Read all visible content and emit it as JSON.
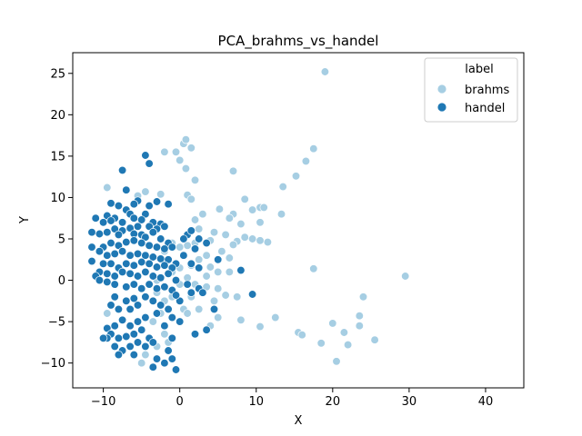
{
  "chart_data": {
    "type": "scatter",
    "title": "PCA_brahms_vs_handel",
    "xlabel": "X",
    "ylabel": "Y",
    "xlim": [
      -14,
      45
    ],
    "ylim": [
      -13,
      27.5
    ],
    "xticks": [
      -10,
      0,
      10,
      20,
      30,
      40
    ],
    "yticks": [
      -10,
      -5,
      0,
      5,
      10,
      15,
      20,
      25
    ],
    "grid": false,
    "legend": {
      "title": "label",
      "position": "top-right"
    },
    "series": [
      {
        "name": "brahms",
        "color": "#a6cee3",
        "points": [
          [
            19.0,
            25.2
          ],
          [
            0.5,
            16.5
          ],
          [
            0.8,
            17.0
          ],
          [
            1.5,
            16.0
          ],
          [
            -2.0,
            15.5
          ],
          [
            0.0,
            14.5
          ],
          [
            17.5,
            15.9
          ],
          [
            16.5,
            14.4
          ],
          [
            15.2,
            12.6
          ],
          [
            0.8,
            13.5
          ],
          [
            7.0,
            13.2
          ],
          [
            -0.5,
            15.5
          ],
          [
            2.0,
            12.1
          ],
          [
            13.5,
            11.3
          ],
          [
            -9.5,
            11.2
          ],
          [
            -4.5,
            10.7
          ],
          [
            -5.5,
            10.2
          ],
          [
            -2.5,
            10.4
          ],
          [
            1.0,
            10.3
          ],
          [
            1.5,
            9.8
          ],
          [
            8.5,
            9.8
          ],
          [
            10.5,
            8.8
          ],
          [
            11.0,
            8.8
          ],
          [
            9.5,
            8.5
          ],
          [
            13.3,
            8.0
          ],
          [
            5.2,
            8.6
          ],
          [
            7.0,
            8.0
          ],
          [
            3.0,
            8.0
          ],
          [
            6.5,
            7.5
          ],
          [
            2.0,
            7.3
          ],
          [
            10.5,
            7.0
          ],
          [
            8.0,
            6.8
          ],
          [
            4.5,
            5.8
          ],
          [
            2.5,
            6.2
          ],
          [
            6.0,
            5.5
          ],
          [
            8.5,
            5.2
          ],
          [
            9.5,
            5.0
          ],
          [
            11.5,
            4.6
          ],
          [
            10.5,
            4.8
          ],
          [
            7.5,
            4.7
          ],
          [
            7.0,
            4.3
          ],
          [
            4.0,
            4.8
          ],
          [
            2.0,
            4.5
          ],
          [
            1.0,
            4.2
          ],
          [
            -1.0,
            4.5
          ],
          [
            0.0,
            4.0
          ],
          [
            -2.0,
            3.5
          ],
          [
            3.5,
            3.0
          ],
          [
            5.5,
            3.5
          ],
          [
            6.5,
            2.7
          ],
          [
            2.5,
            2.5
          ],
          [
            1.5,
            1.8
          ],
          [
            0.0,
            1.5
          ],
          [
            -1.0,
            1.0
          ],
          [
            4.0,
            1.6
          ],
          [
            5.0,
            1.0
          ],
          [
            6.5,
            1.0
          ],
          [
            3.5,
            0.5
          ],
          [
            17.5,
            1.4
          ],
          [
            29.5,
            0.5
          ],
          [
            -3.0,
            0.0
          ],
          [
            0.0,
            -0.5
          ],
          [
            1.0,
            0.3
          ],
          [
            2.0,
            -0.5
          ],
          [
            3.5,
            -0.8
          ],
          [
            5.0,
            -1.0
          ],
          [
            6.0,
            -1.8
          ],
          [
            7.5,
            -2.0
          ],
          [
            4.5,
            -2.5
          ],
          [
            1.5,
            -2.0
          ],
          [
            -1.0,
            -2.0
          ],
          [
            -3.0,
            -1.5
          ],
          [
            -2.0,
            -2.5
          ],
          [
            0.5,
            -3.5
          ],
          [
            2.5,
            -3.5
          ],
          [
            5.0,
            -4.5
          ],
          [
            8.0,
            -4.8
          ],
          [
            12.5,
            -4.5
          ],
          [
            10.5,
            -5.6
          ],
          [
            4.0,
            -5.5
          ],
          [
            1.0,
            -4.0
          ],
          [
            -2.5,
            -4.0
          ],
          [
            -3.5,
            -5.0
          ],
          [
            -2.0,
            -6.5
          ],
          [
            -1.5,
            -7.5
          ],
          [
            -3.0,
            -8.0
          ],
          [
            -4.5,
            -9.0
          ],
          [
            -5.0,
            -10.0
          ],
          [
            -9.5,
            -4.0
          ],
          [
            15.5,
            -6.3
          ],
          [
            16.0,
            -6.6
          ],
          [
            20.0,
            -5.2
          ],
          [
            21.5,
            -6.3
          ],
          [
            18.5,
            -7.6
          ],
          [
            22.0,
            -7.8
          ],
          [
            20.5,
            -9.8
          ],
          [
            23.5,
            -5.5
          ],
          [
            23.5,
            -4.3
          ],
          [
            24.0,
            -2.0
          ],
          [
            25.5,
            -7.2
          ]
        ]
      },
      {
        "name": "handel",
        "color": "#1f78b4",
        "points": [
          [
            -4.5,
            15.1
          ],
          [
            -4.0,
            14.1
          ],
          [
            -7.5,
            13.3
          ],
          [
            -7.0,
            10.9
          ],
          [
            -5.5,
            9.6
          ],
          [
            -4.0,
            9.0
          ],
          [
            -6.0,
            9.2
          ],
          [
            -8.0,
            9.0
          ],
          [
            -9.0,
            9.3
          ],
          [
            -3.0,
            9.5
          ],
          [
            -1.5,
            9.2
          ],
          [
            -7.0,
            8.5
          ],
          [
            -6.5,
            8.0
          ],
          [
            -4.5,
            8.0
          ],
          [
            -9.5,
            7.8
          ],
          [
            -8.5,
            7.5
          ],
          [
            -10.0,
            7.0
          ],
          [
            -11.0,
            7.5
          ],
          [
            -9.0,
            7.2
          ],
          [
            -7.5,
            7.0
          ],
          [
            -6.0,
            7.5
          ],
          [
            -5.0,
            7.3
          ],
          [
            -3.5,
            7.0
          ],
          [
            -2.5,
            6.8
          ],
          [
            -2.0,
            6.5
          ],
          [
            -3.0,
            6.2
          ],
          [
            -4.0,
            6.5
          ],
          [
            -5.5,
            6.5
          ],
          [
            -6.5,
            6.3
          ],
          [
            -7.5,
            6.0
          ],
          [
            -8.5,
            6.2
          ],
          [
            -9.5,
            5.8
          ],
          [
            -10.5,
            5.6
          ],
          [
            -11.5,
            5.8
          ],
          [
            -8.0,
            5.5
          ],
          [
            -6.0,
            5.6
          ],
          [
            -5.0,
            5.5
          ],
          [
            -4.5,
            5.2
          ],
          [
            -3.5,
            5.8
          ],
          [
            -2.5,
            5.0
          ],
          [
            -1.5,
            4.5
          ],
          [
            1.0,
            5.5
          ],
          [
            1.5,
            6.0
          ],
          [
            2.5,
            5.0
          ],
          [
            -1.0,
            4.0
          ],
          [
            -2.0,
            3.8
          ],
          [
            -3.0,
            4.0
          ],
          [
            -4.0,
            4.2
          ],
          [
            -5.0,
            4.5
          ],
          [
            -6.0,
            4.8
          ],
          [
            -7.0,
            4.6
          ],
          [
            -8.0,
            4.2
          ],
          [
            -9.0,
            4.5
          ],
          [
            -10.0,
            4.0
          ],
          [
            -11.5,
            4.0
          ],
          [
            -10.5,
            3.5
          ],
          [
            -9.5,
            3.0
          ],
          [
            -8.5,
            3.2
          ],
          [
            -7.5,
            3.5
          ],
          [
            -6.5,
            3.0
          ],
          [
            -5.5,
            3.2
          ],
          [
            -4.5,
            3.0
          ],
          [
            -3.5,
            2.8
          ],
          [
            -2.5,
            2.6
          ],
          [
            -1.5,
            2.5
          ],
          [
            -0.5,
            2.0
          ],
          [
            0.5,
            3.0
          ],
          [
            1.5,
            2.0
          ],
          [
            2.5,
            1.5
          ],
          [
            -1.0,
            1.5
          ],
          [
            -2.0,
            1.8
          ],
          [
            -3.0,
            1.6
          ],
          [
            -4.0,
            2.0
          ],
          [
            -5.0,
            2.2
          ],
          [
            -6.0,
            1.8
          ],
          [
            -7.0,
            2.0
          ],
          [
            -8.0,
            1.5
          ],
          [
            -9.0,
            2.0
          ],
          [
            -10.0,
            2.0
          ],
          [
            -11.5,
            2.3
          ],
          [
            -10.5,
            1.0
          ],
          [
            -11.0,
            0.5
          ],
          [
            -9.5,
            0.8
          ],
          [
            -8.5,
            0.5
          ],
          [
            -7.5,
            1.0
          ],
          [
            -6.5,
            0.8
          ],
          [
            -5.5,
            0.5
          ],
          [
            -4.5,
            1.0
          ],
          [
            -3.5,
            0.5
          ],
          [
            -2.5,
            0.3
          ],
          [
            -1.5,
            0.8
          ],
          [
            -0.5,
            0.0
          ],
          [
            -10.5,
            0.0
          ],
          [
            -9.5,
            -0.2
          ],
          [
            -8.5,
            -0.5
          ],
          [
            -7.0,
            -0.8
          ],
          [
            -6.0,
            -0.5
          ],
          [
            -5.0,
            -1.0
          ],
          [
            -4.0,
            -0.5
          ],
          [
            -3.0,
            -1.0
          ],
          [
            -2.0,
            -0.8
          ],
          [
            -1.0,
            -1.2
          ],
          [
            1.5,
            -1.5
          ],
          [
            2.5,
            -1.0
          ],
          [
            -4.5,
            -2.0
          ],
          [
            -6.0,
            -2.2
          ],
          [
            -7.0,
            -2.5
          ],
          [
            -8.5,
            -2.0
          ],
          [
            -5.5,
            -3.0
          ],
          [
            -6.5,
            -3.5
          ],
          [
            -8.0,
            -3.5
          ],
          [
            -9.0,
            -3.0
          ],
          [
            -3.5,
            -2.5
          ],
          [
            -2.5,
            -3.0
          ],
          [
            -1.5,
            -3.5
          ],
          [
            -3.0,
            -4.0
          ],
          [
            -4.5,
            -4.5
          ],
          [
            -5.5,
            -5.0
          ],
          [
            -6.5,
            -5.5
          ],
          [
            -7.5,
            -4.8
          ],
          [
            -8.5,
            -5.5
          ],
          [
            -9.5,
            -5.8
          ],
          [
            -9.0,
            -6.5
          ],
          [
            -8.0,
            -7.0
          ],
          [
            -7.0,
            -6.8
          ],
          [
            -6.0,
            -6.5
          ],
          [
            -5.0,
            -6.0
          ],
          [
            -4.0,
            -7.0
          ],
          [
            -2.0,
            -5.5
          ],
          [
            -1.0,
            -7.0
          ],
          [
            -3.5,
            -7.5
          ],
          [
            -4.5,
            -8.0
          ],
          [
            -5.5,
            -7.5
          ],
          [
            -6.5,
            -8.0
          ],
          [
            -7.5,
            -8.5
          ],
          [
            -9.5,
            -7.0
          ],
          [
            -8.5,
            -8.0
          ],
          [
            -8.0,
            -9.0
          ],
          [
            -6.0,
            -9.0
          ],
          [
            -3.0,
            -9.5
          ],
          [
            -2.0,
            -10.0
          ],
          [
            -3.5,
            -10.5
          ],
          [
            -0.5,
            -10.8
          ],
          [
            -1.5,
            -8.5
          ],
          [
            -1.0,
            -9.5
          ],
          [
            -10.0,
            -7.0
          ],
          [
            -1.0,
            -4.5
          ],
          [
            0.0,
            -5.0
          ],
          [
            2.0,
            -6.5
          ],
          [
            3.5,
            -6.0
          ],
          [
            4.5,
            -3.5
          ],
          [
            8.0,
            1.2
          ],
          [
            9.5,
            -1.7
          ],
          [
            5.0,
            2.5
          ],
          [
            3.5,
            4.5
          ],
          [
            2.0,
            3.8
          ],
          [
            0.5,
            5.0
          ],
          [
            3.0,
            -1.5
          ],
          [
            0.0,
            -2.5
          ],
          [
            -0.5,
            -1.8
          ],
          [
            1.0,
            -0.5
          ]
        ]
      }
    ]
  }
}
